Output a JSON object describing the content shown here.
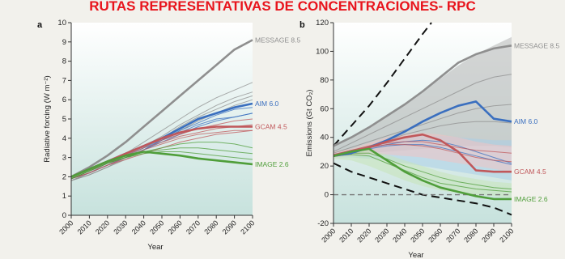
{
  "page_title": "RUTAS REPRESENTATIVAS DE CONCENTRACIONES- RPC",
  "colors": {
    "title": "#e8141c",
    "plot_bg_top": "#ffffff",
    "plot_bg_bottom": "#c7e2dd",
    "message": "#8f8f8f",
    "aim": "#3a6fbf",
    "gcam": "#c0575a",
    "image": "#4f9e3a",
    "grey_band": "#b5b5b5",
    "blue_band": "#a9cde8",
    "pink_band": "#f0c3c3",
    "green_band": "#c7e3b8",
    "label_grey": "#8a8a8a"
  },
  "chart_data": [
    {
      "type": "line",
      "panel_label": "a",
      "ylabel": "Radiative forcing (W m⁻²)",
      "xlabel": "Year",
      "xlim": [
        2000,
        2100
      ],
      "ylim": [
        0,
        10
      ],
      "x_ticks": [
        "2000",
        "2010",
        "2020",
        "2030",
        "2040",
        "2050",
        "2060",
        "2070",
        "2080",
        "2090",
        "2100"
      ],
      "y_ticks": [
        "0",
        "1",
        "2",
        "3",
        "4",
        "5",
        "6",
        "7",
        "8",
        "9",
        "10"
      ],
      "grid": false,
      "series": [
        {
          "name": "MESSAGE 8.5",
          "color_key": "message",
          "x": [
            2000,
            2010,
            2020,
            2030,
            2040,
            2050,
            2060,
            2070,
            2080,
            2090,
            2100
          ],
          "y": [
            2.0,
            2.5,
            3.1,
            3.8,
            4.6,
            5.4,
            6.2,
            7.0,
            7.8,
            8.6,
            9.1
          ]
        },
        {
          "name": "AIM 6.0",
          "color_key": "aim",
          "x": [
            2000,
            2010,
            2020,
            2030,
            2040,
            2050,
            2060,
            2070,
            2080,
            2090,
            2100
          ],
          "y": [
            2.0,
            2.4,
            2.8,
            3.2,
            3.6,
            4.0,
            4.5,
            5.0,
            5.3,
            5.6,
            5.8
          ]
        },
        {
          "name": "GCAM 4.5",
          "color_key": "gcam",
          "x": [
            2000,
            2010,
            2020,
            2030,
            2040,
            2050,
            2060,
            2070,
            2080,
            2090,
            2100
          ],
          "y": [
            2.0,
            2.4,
            2.8,
            3.2,
            3.6,
            4.0,
            4.3,
            4.5,
            4.6,
            4.6,
            4.6
          ]
        },
        {
          "name": "IMAGE 2.6",
          "color_key": "image",
          "x": [
            2000,
            2010,
            2020,
            2030,
            2040,
            2050,
            2060,
            2070,
            2080,
            2090,
            2100
          ],
          "y": [
            2.0,
            2.4,
            2.8,
            3.1,
            3.3,
            3.2,
            3.1,
            2.95,
            2.85,
            2.75,
            2.65
          ]
        }
      ],
      "background_lines": [
        {
          "color_key": "message",
          "y": [
            1.8,
            2.2,
            2.7,
            3.2,
            3.8,
            4.4,
            5.0,
            5.6,
            6.1,
            6.5,
            6.9
          ]
        },
        {
          "color_key": "message",
          "y": [
            1.8,
            2.2,
            2.6,
            3.1,
            3.6,
            4.1,
            4.7,
            5.2,
            5.7,
            6.1,
            6.4
          ]
        },
        {
          "color_key": "message",
          "y": [
            1.8,
            2.1,
            2.5,
            3.0,
            3.5,
            4.0,
            4.6,
            5.1,
            5.5,
            5.9,
            6.2
          ]
        },
        {
          "color_key": "message",
          "y": [
            1.8,
            2.1,
            2.5,
            2.9,
            3.4,
            3.9,
            4.4,
            4.9,
            5.3,
            5.7,
            6.0
          ]
        },
        {
          "color_key": "aim",
          "y": [
            1.9,
            2.2,
            2.6,
            3.0,
            3.4,
            3.9,
            4.4,
            4.8,
            5.2,
            5.5,
            5.6
          ]
        },
        {
          "color_key": "aim",
          "y": [
            1.9,
            2.2,
            2.6,
            3.0,
            3.4,
            3.8,
            4.2,
            4.6,
            4.9,
            5.1,
            5.3
          ]
        },
        {
          "color_key": "aim",
          "y": [
            1.9,
            2.3,
            2.7,
            3.1,
            3.5,
            3.9,
            4.3,
            4.7,
            5.0,
            5.1,
            5.3
          ]
        },
        {
          "color_key": "gcam",
          "y": [
            1.9,
            2.3,
            2.7,
            3.1,
            3.5,
            3.8,
            4.1,
            4.3,
            4.5,
            4.6,
            4.7
          ]
        },
        {
          "color_key": "gcam",
          "y": [
            1.9,
            2.2,
            2.6,
            3.0,
            3.4,
            3.7,
            4.0,
            4.2,
            4.3,
            4.4,
            4.4
          ]
        },
        {
          "color_key": "gcam",
          "y": [
            1.9,
            2.2,
            2.6,
            2.9,
            3.2,
            3.5,
            3.8,
            4.0,
            4.2,
            4.3,
            4.4
          ]
        },
        {
          "color_key": "gcam",
          "y": [
            1.9,
            2.3,
            2.8,
            3.2,
            3.6,
            3.9,
            4.2,
            4.5,
            4.7,
            4.9,
            5.0
          ]
        },
        {
          "color_key": "image",
          "y": [
            1.9,
            2.3,
            2.7,
            3.0,
            3.3,
            3.4,
            3.5,
            3.5,
            3.4,
            3.3,
            3.2
          ]
        },
        {
          "color_key": "image",
          "y": [
            1.9,
            2.3,
            2.7,
            3.0,
            3.3,
            3.5,
            3.7,
            3.8,
            3.8,
            3.7,
            3.5
          ]
        },
        {
          "color_key": "image",
          "y": [
            1.9,
            2.3,
            2.7,
            3.0,
            3.2,
            3.3,
            3.3,
            3.2,
            3.1,
            3.0,
            2.9
          ]
        }
      ]
    },
    {
      "type": "line",
      "panel_label": "b",
      "ylabel": "Emissions (Gt CO₂)",
      "xlabel": "Year",
      "xlim": [
        2000,
        2100
      ],
      "ylim": [
        -20,
        120
      ],
      "x_ticks": [
        "2000",
        "2010",
        "2020",
        "2030",
        "2040",
        "2050",
        "2060",
        "2070",
        "2080",
        "2090",
        "2100"
      ],
      "y_ticks": [
        "-20",
        "0",
        "20",
        "40",
        "60",
        "80",
        "100",
        "120"
      ],
      "grid": false,
      "series": [
        {
          "name": "MESSAGE 8.5",
          "color_key": "message",
          "x": [
            2000,
            2010,
            2020,
            2030,
            2040,
            2050,
            2060,
            2070,
            2080,
            2090,
            2100
          ],
          "y": [
            34,
            40,
            47,
            55,
            63,
            72,
            82,
            92,
            98,
            102,
            104
          ]
        },
        {
          "name": "AIM 6.0",
          "color_key": "aim",
          "x": [
            2000,
            2010,
            2020,
            2030,
            2040,
            2050,
            2060,
            2070,
            2080,
            2090,
            2100
          ],
          "y": [
            27,
            29,
            33,
            38,
            44,
            51,
            57,
            62,
            65,
            53,
            51
          ]
        },
        {
          "name": "GCAM 4.5",
          "color_key": "gcam",
          "x": [
            2000,
            2010,
            2020,
            2030,
            2040,
            2050,
            2060,
            2070,
            2080,
            2090,
            2100
          ],
          "y": [
            27,
            30,
            33,
            37,
            40,
            42,
            38,
            30,
            17,
            16,
            16
          ]
        },
        {
          "name": "IMAGE 2.6",
          "color_key": "image",
          "x": [
            2000,
            2010,
            2020,
            2030,
            2040,
            2050,
            2060,
            2070,
            2080,
            2090,
            2100
          ],
          "y": [
            27,
            30,
            32,
            24,
            16,
            10,
            5,
            2,
            -1,
            -3,
            -3
          ]
        }
      ],
      "dashed_lines": [
        {
          "x": [
            2000,
            2010,
            2020,
            2030,
            2040,
            2050,
            2055
          ],
          "y": [
            34,
            48,
            62,
            78,
            95,
            112,
            120
          ]
        },
        {
          "x": [
            2000,
            2010,
            2020,
            2030,
            2040,
            2050,
            2060,
            2070,
            2080,
            2090,
            2100
          ],
          "y": [
            22,
            16,
            12,
            8,
            4,
            0,
            -2,
            -4,
            -6,
            -9,
            -14
          ]
        },
        {
          "x": [
            2000,
            2100
          ],
          "y": [
            0,
            0
          ]
        }
      ],
      "bands": [
        {
          "color_key": "grey_band",
          "x": [
            2000,
            2010,
            2020,
            2030,
            2040,
            2050,
            2060,
            2070,
            2080,
            2090,
            2100
          ],
          "upper": [
            35,
            40,
            47,
            55,
            63,
            72,
            81,
            90,
            98,
            104,
            110
          ],
          "lower": [
            27,
            28,
            29,
            30,
            31,
            32,
            33,
            34,
            34,
            34,
            33
          ]
        },
        {
          "color_key": "blue_band",
          "x": [
            2000,
            2010,
            2020,
            2030,
            2040,
            2050,
            2060,
            2070,
            2080,
            2090,
            2100
          ],
          "upper": [
            29,
            31,
            34,
            37,
            40,
            41,
            41,
            40,
            39,
            38,
            38
          ],
          "lower": [
            26,
            26,
            25,
            24,
            22,
            20,
            18,
            16,
            14,
            12,
            10
          ]
        },
        {
          "color_key": "pink_band",
          "x": [
            2000,
            2010,
            2020,
            2030,
            2040,
            2050,
            2060,
            2070,
            2080,
            2090,
            2100
          ],
          "upper": [
            30,
            32,
            36,
            40,
            42,
            43,
            42,
            40,
            37,
            35,
            34
          ],
          "lower": [
            26,
            27,
            28,
            28,
            27,
            26,
            24,
            22,
            20,
            18,
            16
          ]
        },
        {
          "color_key": "green_band",
          "x": [
            2000,
            2010,
            2020,
            2030,
            2040,
            2050,
            2060,
            2070,
            2080,
            2090,
            2100
          ],
          "upper": [
            28,
            30,
            31,
            28,
            24,
            20,
            16,
            13,
            11,
            9,
            8
          ],
          "lower": [
            25,
            24,
            20,
            15,
            10,
            6,
            3,
            1,
            0,
            -1,
            -2
          ]
        }
      ],
      "background_lines": [
        {
          "color_key": "message",
          "y": [
            30,
            36,
            42,
            48,
            54,
            60,
            66,
            72,
            78,
            82,
            84
          ]
        },
        {
          "color_key": "message",
          "y": [
            29,
            33,
            37,
            41,
            45,
            49,
            53,
            57,
            60,
            62,
            63
          ]
        },
        {
          "color_key": "message",
          "y": [
            28,
            31,
            34,
            38,
            42,
            45,
            48,
            50,
            51,
            51,
            50
          ]
        },
        {
          "color_key": "aim",
          "y": [
            27,
            30,
            33,
            35,
            37,
            38,
            37,
            34,
            30,
            26,
            22
          ]
        },
        {
          "color_key": "aim",
          "y": [
            27,
            29,
            32,
            34,
            35,
            35,
            33,
            30,
            27,
            24,
            21
          ]
        },
        {
          "color_key": "gcam",
          "y": [
            28,
            31,
            34,
            36,
            37,
            37,
            35,
            33,
            31,
            30,
            29
          ]
        },
        {
          "color_key": "gcam",
          "y": [
            28,
            31,
            33,
            35,
            35,
            34,
            32,
            29,
            26,
            24,
            23
          ]
        },
        {
          "color_key": "image",
          "y": [
            27,
            29,
            29,
            25,
            20,
            16,
            12,
            9,
            7,
            5,
            4
          ]
        },
        {
          "color_key": "image",
          "y": [
            27,
            28,
            27,
            22,
            17,
            12,
            8,
            6,
            4,
            3,
            2
          ]
        }
      ]
    }
  ]
}
